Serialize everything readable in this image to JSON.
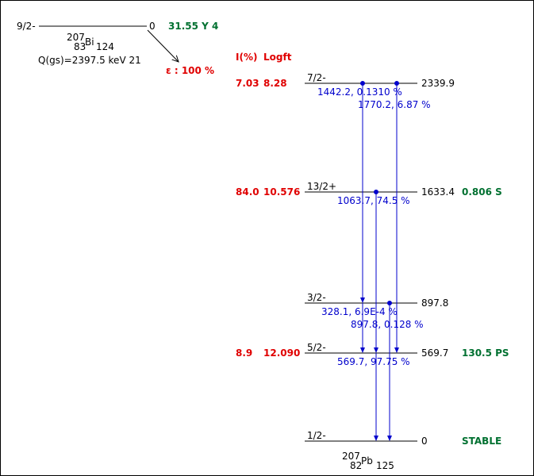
{
  "parent": {
    "spin": "9/2-",
    "energy": "0",
    "halflife": "31.55 Y 4",
    "mass": "207",
    "z": "83",
    "symbol": "Bi",
    "n": "124",
    "q_value": "Q(gs)=2397.5 keV 21",
    "decay": "ε : 100 %"
  },
  "headers": {
    "intensity": "I(%)",
    "logft": "Logft"
  },
  "levels": [
    {
      "spin": "7/2-",
      "energy": "2339.9",
      "intensity": "7.03",
      "logft": "8.28",
      "halflife": ""
    },
    {
      "spin": "13/2+",
      "energy": "1633.4",
      "intensity": "84.0",
      "logft": "10.576",
      "halflife": "0.806 S"
    },
    {
      "spin": "3/2-",
      "energy": "897.8",
      "intensity": "",
      "logft": "",
      "halflife": ""
    },
    {
      "spin": "5/2-",
      "energy": "569.7",
      "intensity": "8.9",
      "logft": "12.090",
      "halflife": "130.5 PS"
    },
    {
      "spin": "1/2-",
      "energy": "0",
      "intensity": "",
      "logft": "",
      "halflife": "STABLE"
    }
  ],
  "gammas": [
    {
      "label": "1442.2, 0.1310 %"
    },
    {
      "label": "1770.2, 6.87 %"
    },
    {
      "label": "1063.7, 74.5 %"
    },
    {
      "label": "328.1, 6.9E-4 %"
    },
    {
      "label": "897.8, 0.128 %"
    },
    {
      "label": "569.7, 97.75 %"
    }
  ],
  "daughter": {
    "mass": "207",
    "z": "82",
    "symbol": "Pb",
    "n": "125"
  },
  "colors": {
    "red": "#e00000",
    "green": "#007030",
    "blue": "#0000cc",
    "black": "#000000"
  }
}
